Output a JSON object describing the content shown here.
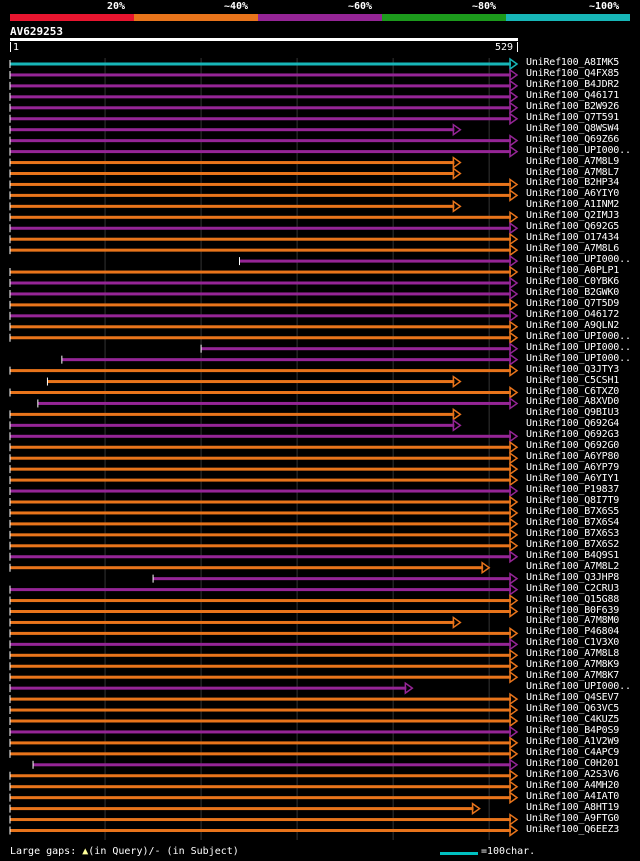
{
  "legend": {
    "segments": [
      {
        "label": "20%",
        "color": "#e8152f"
      },
      {
        "label": "~40%",
        "color": "#e8741b"
      },
      {
        "label": "~60%",
        "color": "#952596"
      },
      {
        "label": "~80%",
        "color": "#1c9a1c"
      },
      {
        "label": "~100%",
        "color": "#17b6b8"
      }
    ]
  },
  "query": {
    "name": "AV629253",
    "start": "1",
    "end": "529",
    "length": 529
  },
  "colors": {
    "orange": "#e8741b",
    "purple": "#952596",
    "cyan": "#17b6b8",
    "gap_line": "#777777",
    "marker": "#ffff99"
  },
  "hits": [
    {
      "name": "UniRef100_A8IMK5",
      "color": "cyan",
      "qs": 1,
      "qe": 529
    },
    {
      "name": "UniRef100_Q4FX85",
      "color": "purple",
      "qs": 1,
      "qe": 529
    },
    {
      "name": "UniRef100_B4JDR2",
      "color": "purple",
      "qs": 1,
      "qe": 529
    },
    {
      "name": "UniRef100_Q46171",
      "color": "purple",
      "qs": 1,
      "qe": 529
    },
    {
      "name": "UniRef100_B2W926",
      "color": "purple",
      "qs": 1,
      "qe": 529
    },
    {
      "name": "UniRef100_Q7T591",
      "color": "purple",
      "qs": 1,
      "qe": 529
    },
    {
      "name": "UniRef100_Q8WSW4",
      "color": "purple",
      "qs": 1,
      "qe": 470
    },
    {
      "name": "UniRef100_Q69Z66",
      "color": "purple",
      "qs": 1,
      "qe": 529
    },
    {
      "name": "UniRef100_UPI000..",
      "color": "purple",
      "qs": 1,
      "qe": 529
    },
    {
      "name": "UniRef100_A7M8L9",
      "color": "orange",
      "qs": 1,
      "qe": 470
    },
    {
      "name": "UniRef100_A7M8L7",
      "color": "orange",
      "qs": 1,
      "qe": 470
    },
    {
      "name": "UniRef100_B2HP34",
      "color": "orange",
      "qs": 1,
      "qe": 529
    },
    {
      "name": "UniRef100_A6YIY0",
      "color": "orange",
      "qs": 1,
      "qe": 529
    },
    {
      "name": "UniRef100_A1INM2",
      "color": "orange",
      "qs": 1,
      "qe": 470
    },
    {
      "name": "UniRef100_Q2IMJ3",
      "color": "orange",
      "qs": 1,
      "qe": 529
    },
    {
      "name": "UniRef100_Q692G5",
      "color": "purple",
      "qs": 1,
      "qe": 529
    },
    {
      "name": "UniRef100_O17434",
      "color": "orange",
      "qs": 1,
      "qe": 529
    },
    {
      "name": "UniRef100_A7M8L6",
      "color": "orange",
      "qs": 1,
      "qe": 529
    },
    {
      "name": "UniRef100_UPI000..",
      "color": "purple",
      "qs": 240,
      "qe": 529
    },
    {
      "name": "UniRef100_A0PLP1",
      "color": "orange",
      "qs": 1,
      "qe": 529
    },
    {
      "name": "UniRef100_C0YBK6",
      "color": "purple",
      "qs": 1,
      "qe": 529
    },
    {
      "name": "UniRef100_B2GWK0",
      "color": "purple",
      "qs": 1,
      "qe": 529
    },
    {
      "name": "UniRef100_Q7T5D9",
      "color": "orange",
      "qs": 1,
      "qe": 529
    },
    {
      "name": "UniRef100_O46172",
      "color": "purple",
      "qs": 1,
      "qe": 529
    },
    {
      "name": "UniRef100_A9QLN2",
      "color": "orange",
      "qs": 1,
      "qe": 529
    },
    {
      "name": "UniRef100_UPI000..",
      "color": "orange",
      "qs": 1,
      "qe": 529
    },
    {
      "name": "UniRef100_UPI000..",
      "color": "purple",
      "qs": 200,
      "qe": 529
    },
    {
      "name": "UniRef100_UPI000..",
      "color": "purple",
      "qs": 55,
      "qe": 529
    },
    {
      "name": "UniRef100_Q3JTY3",
      "color": "orange",
      "qs": 1,
      "qe": 529
    },
    {
      "name": "UniRef100_C5CSH1",
      "color": "orange",
      "qs": 40,
      "qe": 470
    },
    {
      "name": "UniRef100_C6TXZ0",
      "color": "orange",
      "qs": 1,
      "qe": 529
    },
    {
      "name": "UniRef100_A8XVD0",
      "color": "purple",
      "qs": 30,
      "qe": 529
    },
    {
      "name": "UniRef100_Q9BIU3",
      "color": "orange",
      "qs": 1,
      "qe": 470
    },
    {
      "name": "UniRef100_Q692G4",
      "color": "purple",
      "qs": 1,
      "qe": 470
    },
    {
      "name": "UniRef100_Q692G3",
      "color": "purple",
      "qs": 1,
      "qe": 529
    },
    {
      "name": "UniRef100_Q692G0",
      "color": "orange",
      "qs": 1,
      "qe": 529
    },
    {
      "name": "UniRef100_A6YP80",
      "color": "orange",
      "qs": 1,
      "qe": 529
    },
    {
      "name": "UniRef100_A6YP79",
      "color": "orange",
      "qs": 1,
      "qe": 529
    },
    {
      "name": "UniRef100_A6YIY1",
      "color": "orange",
      "qs": 1,
      "qe": 529
    },
    {
      "name": "UniRef100_P19837",
      "color": "purple",
      "qs": 1,
      "qe": 529
    },
    {
      "name": "UniRef100_Q8I7T9",
      "color": "orange",
      "qs": 1,
      "qe": 529
    },
    {
      "name": "UniRef100_B7X6S5",
      "color": "orange",
      "qs": 1,
      "qe": 529
    },
    {
      "name": "UniRef100_B7X6S4",
      "color": "orange",
      "qs": 1,
      "qe": 529
    },
    {
      "name": "UniRef100_B7X6S3",
      "color": "orange",
      "qs": 1,
      "qe": 529
    },
    {
      "name": "UniRef100_B7X6S2",
      "color": "orange",
      "qs": 1,
      "qe": 529
    },
    {
      "name": "UniRef100_B4Q9S1",
      "color": "purple",
      "qs": 1,
      "qe": 529
    },
    {
      "name": "UniRef100_A7M8L2",
      "color": "orange",
      "qs": 1,
      "qe": 500
    },
    {
      "name": "UniRef100_Q3JHP8",
      "color": "purple",
      "qs": 150,
      "qe": 529
    },
    {
      "name": "UniRef100_C2CRU3",
      "color": "purple",
      "qs": 1,
      "qe": 529
    },
    {
      "name": "UniRef100_Q15G88",
      "color": "orange",
      "qs": 1,
      "qe": 529
    },
    {
      "name": "UniRef100_B0F639",
      "color": "orange",
      "qs": 1,
      "qe": 529
    },
    {
      "name": "UniRef100_A7M8M0",
      "color": "orange",
      "qs": 1,
      "qe": 470
    },
    {
      "name": "UniRef100_P46804",
      "color": "orange",
      "qs": 1,
      "qe": 529
    },
    {
      "name": "UniRef100_C1V3X0",
      "color": "purple",
      "qs": 1,
      "qe": 529
    },
    {
      "name": "UniRef100_A7M8L8",
      "color": "orange",
      "qs": 1,
      "qe": 529
    },
    {
      "name": "UniRef100_A7M8K9",
      "color": "orange",
      "qs": 1,
      "qe": 529
    },
    {
      "name": "UniRef100_A7M8K7",
      "color": "orange",
      "qs": 1,
      "qe": 529
    },
    {
      "name": "UniRef100_UPI000..",
      "color": "purple",
      "qs": 1,
      "qe": 420
    },
    {
      "name": "UniRef100_Q4SEV7",
      "color": "orange",
      "qs": 1,
      "qe": 529
    },
    {
      "name": "UniRef100_Q63VC5",
      "color": "orange",
      "qs": 1,
      "qe": 529
    },
    {
      "name": "UniRef100_C4KUZ5",
      "color": "orange",
      "qs": 1,
      "qe": 529
    },
    {
      "name": "UniRef100_B4P0S9",
      "color": "purple",
      "qs": 1,
      "qe": 529
    },
    {
      "name": "UniRef100_A1V2W9",
      "color": "orange",
      "qs": 1,
      "qe": 529
    },
    {
      "name": "UniRef100_C4APC9",
      "color": "orange",
      "qs": 1,
      "qe": 529
    },
    {
      "name": "UniRef100_C0H201",
      "color": "purple",
      "qs": 25,
      "qe": 529
    },
    {
      "name": "UniRef100_A2S3V6",
      "color": "orange",
      "qs": 1,
      "qe": 529
    },
    {
      "name": "UniRef100_A4MH20",
      "color": "orange",
      "qs": 1,
      "qe": 529
    },
    {
      "name": "UniRef100_A4IAT0",
      "color": "orange",
      "qs": 1,
      "qe": 529
    },
    {
      "name": "UniRef100_A8HT19",
      "color": "orange",
      "qs": 1,
      "qe": 490
    },
    {
      "name": "UniRef100_A9FTG0",
      "color": "orange",
      "qs": 1,
      "qe": 529
    },
    {
      "name": "UniRef100_Q6EEZ3",
      "color": "orange",
      "qs": 1,
      "qe": 529
    }
  ],
  "footer": {
    "large_gaps_prefix": "Large gaps: ",
    "query_gap": "(in Query)/",
    "subject_gap": "- (in Subject)",
    "scale_label": "=100char."
  }
}
